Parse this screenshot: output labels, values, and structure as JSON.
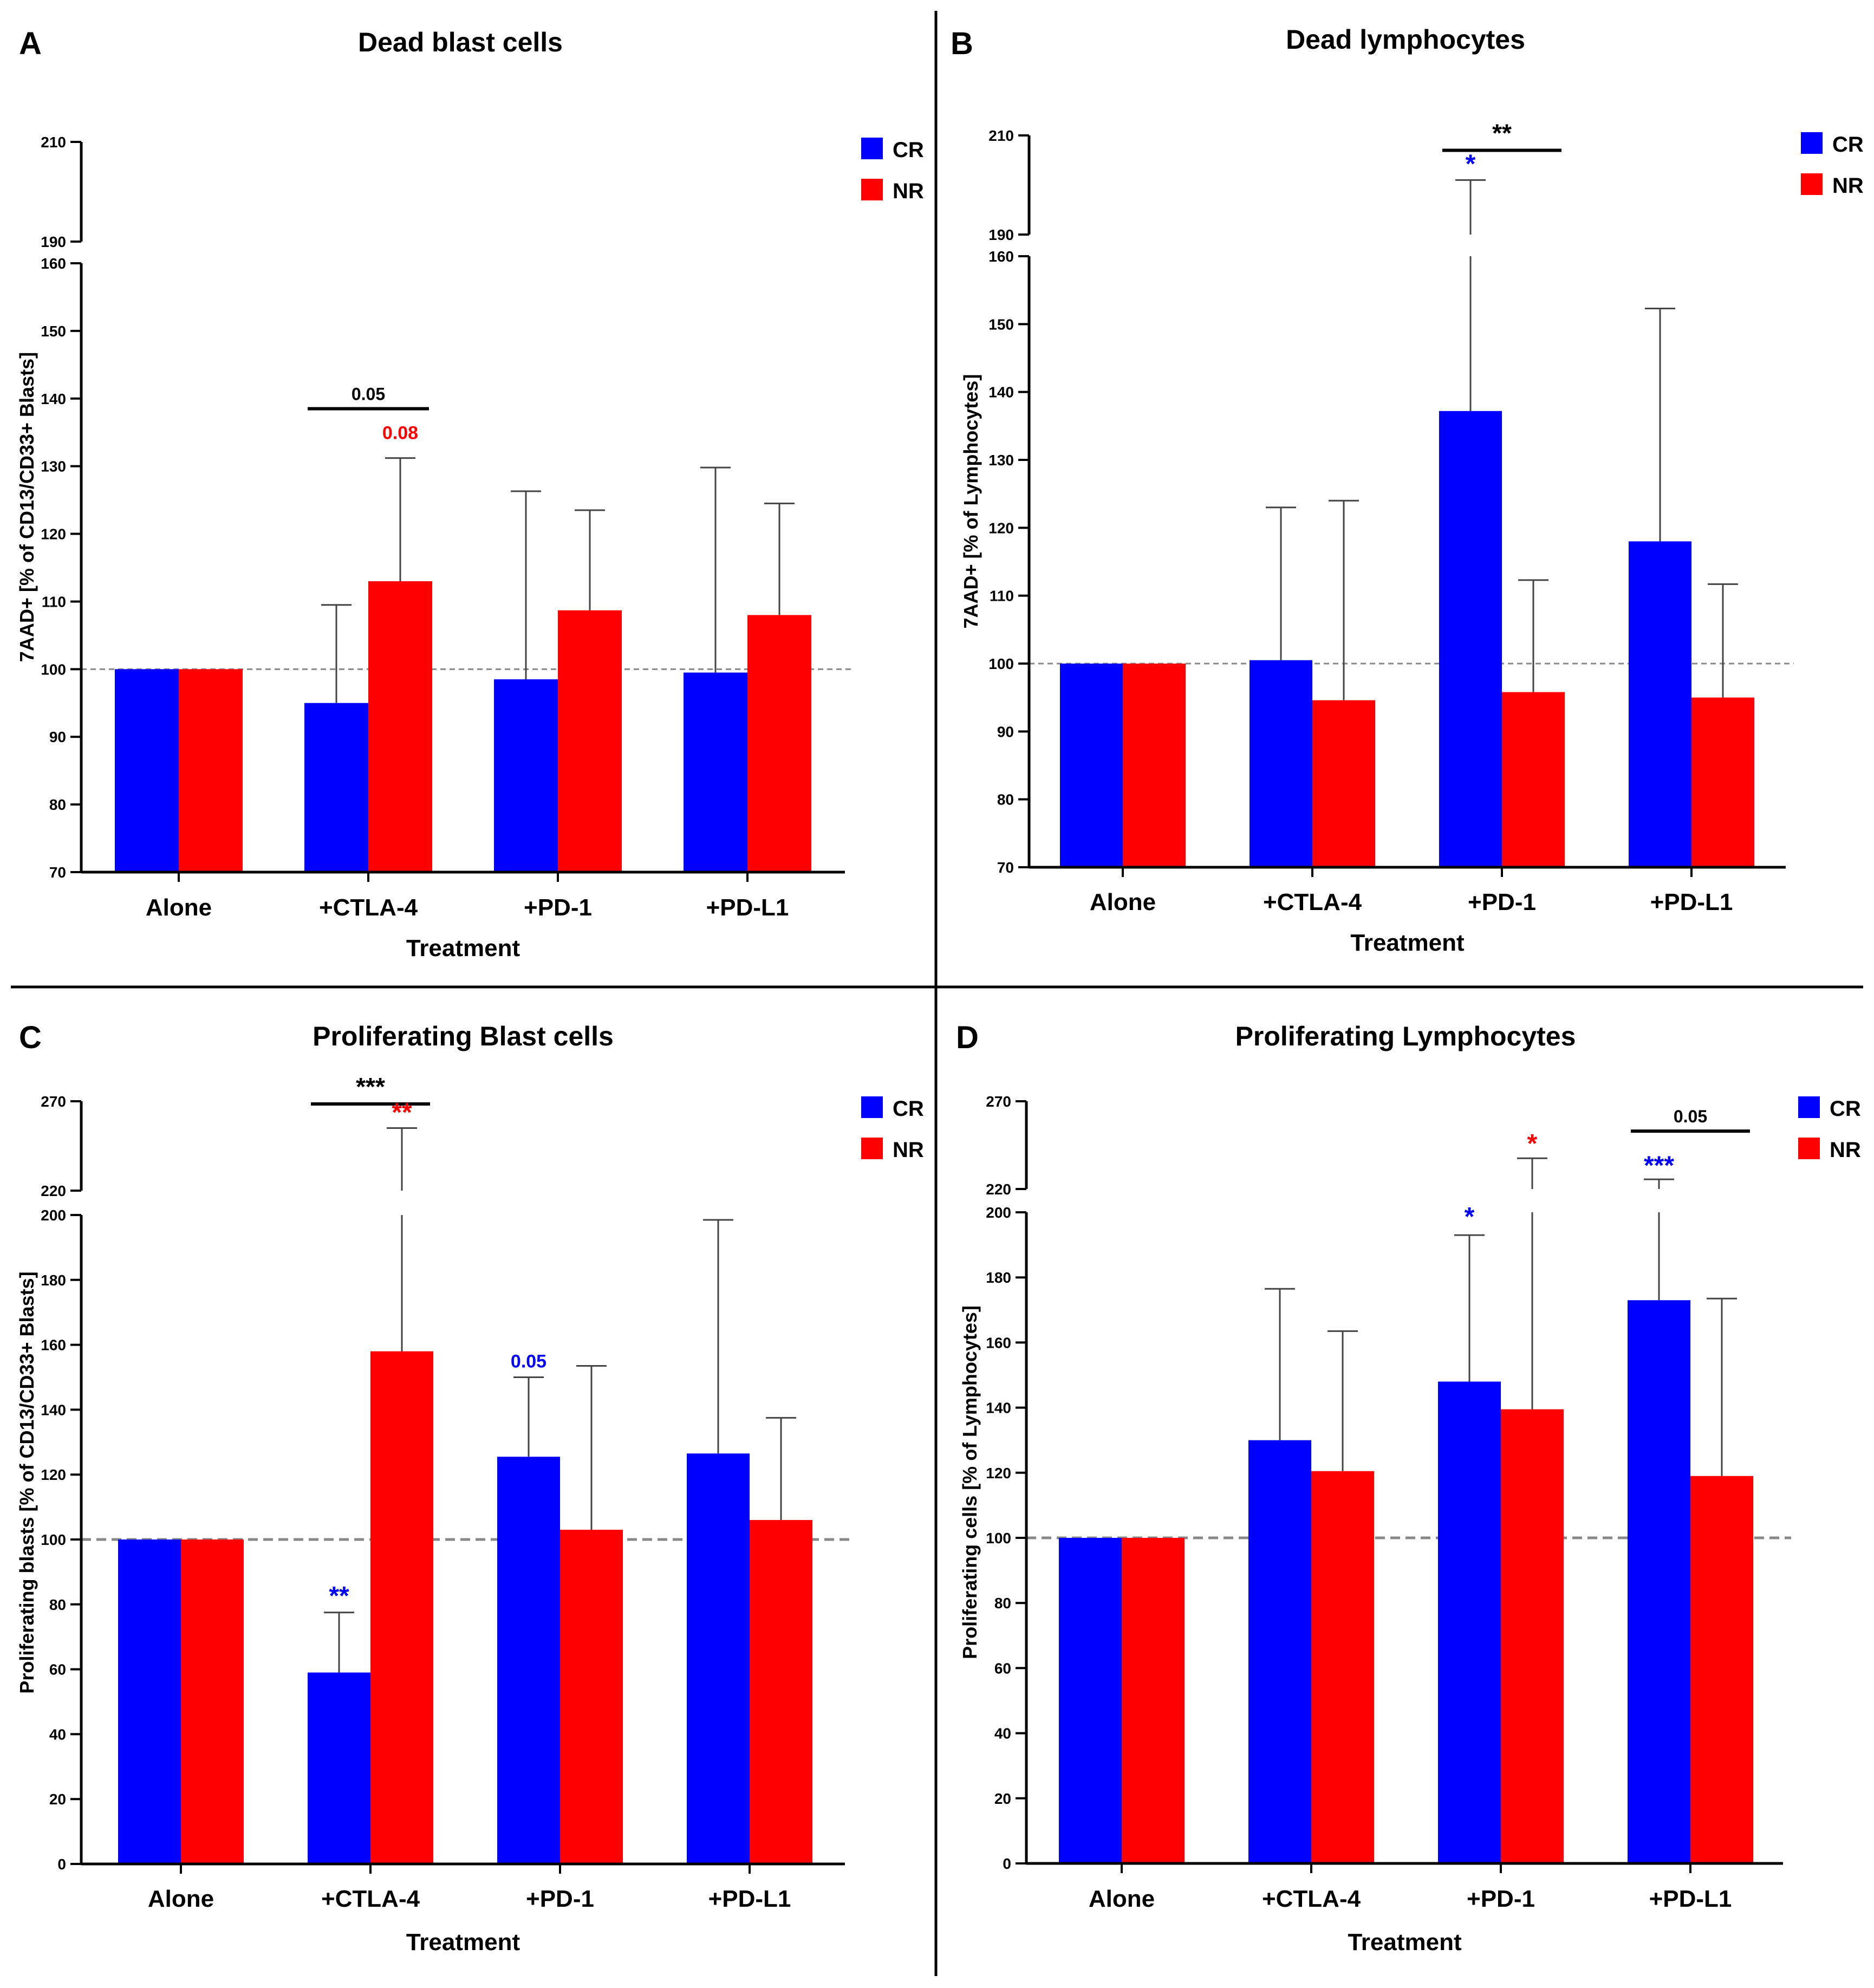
{
  "figure": {
    "colors": {
      "CR": "#0000ff",
      "NR": "#ff0000",
      "axis": "#000000",
      "error": "#444444",
      "baseline": "#888888"
    }
  },
  "chart_data": [
    {
      "panel": "A",
      "type": "bar",
      "title": "Dead blast cells",
      "xlabel": "Treatment",
      "ylabel": "7AAD+ [% of CD13/CD33+ Blasts]",
      "categories": [
        "Alone",
        "+CTLA-4",
        "+PD-1",
        "+PD-L1"
      ],
      "series": [
        {
          "name": "CR",
          "values": [
            100,
            95,
            98.5,
            99.5
          ],
          "errors": [
            0,
            109.5,
            126.3,
            129.8
          ]
        },
        {
          "name": "NR",
          "values": [
            100,
            113,
            108.7,
            108
          ],
          "errors": [
            0,
            131.2,
            123.5,
            124.5
          ]
        }
      ],
      "y_axis": {
        "lower_range": [
          70,
          160
        ],
        "upper_range": [
          190,
          210
        ],
        "lower_ticks": [
          70,
          80,
          90,
          100,
          110,
          120,
          130,
          140,
          150,
          160
        ],
        "upper_ticks": [
          190,
          210
        ]
      },
      "reference_line": 100,
      "legend": {
        "position": "top-right",
        "entries": [
          "CR",
          "NR"
        ]
      },
      "annotations": [
        {
          "text": "0.05",
          "type": "bracket",
          "category": 1,
          "y": 138.5,
          "color": "black"
        },
        {
          "text": "0.08",
          "type": "label",
          "category": 1,
          "series": "NR",
          "y": 134,
          "color": "red"
        }
      ]
    },
    {
      "panel": "B",
      "type": "bar",
      "title": "Dead lymphocytes",
      "xlabel": "Treatment",
      "ylabel": "7AAD+ [% of Lymphocytes]",
      "categories": [
        "Alone",
        "+CTLA-4",
        "+PD-1",
        "+PD-L1"
      ],
      "series": [
        {
          "name": "CR",
          "values": [
            100,
            100.5,
            137.2,
            118
          ],
          "errors": [
            0,
            123,
            201,
            152.3
          ]
        },
        {
          "name": "NR",
          "values": [
            100,
            94.6,
            95.8,
            95
          ],
          "errors": [
            0,
            124,
            112.3,
            111.7
          ]
        }
      ],
      "y_axis": {
        "lower_range": [
          70,
          160
        ],
        "upper_range": [
          190,
          210
        ],
        "lower_ticks": [
          70,
          80,
          90,
          100,
          110,
          120,
          130,
          140,
          150,
          160
        ],
        "upper_ticks": [
          190,
          210
        ]
      },
      "reference_line": 100,
      "legend": {
        "position": "top-right",
        "entries": [
          "CR",
          "NR"
        ]
      },
      "annotations": [
        {
          "text": "**",
          "type": "bracket",
          "category": 2,
          "y": 207,
          "color": "black"
        },
        {
          "text": "*",
          "type": "label",
          "category": 2,
          "series": "CR",
          "y": 202.5,
          "color": "blue"
        }
      ]
    },
    {
      "panel": "C",
      "type": "bar",
      "title": "Proliferating Blast cells",
      "xlabel": "Treatment",
      "ylabel": "Proliferating blasts [% of CD13/CD33+ Blasts]",
      "categories": [
        "Alone",
        "+CTLA-4",
        "+PD-1",
        "+PD-L1"
      ],
      "series": [
        {
          "name": "CR",
          "values": [
            100,
            59,
            125.5,
            126.5
          ],
          "errors": [
            0,
            77.5,
            150,
            198.5
          ]
        },
        {
          "name": "NR",
          "values": [
            100,
            158,
            103,
            106
          ],
          "errors": [
            0,
            255,
            153.5,
            137.5
          ]
        }
      ],
      "y_axis": {
        "lower_range": [
          0,
          200
        ],
        "upper_range": [
          220,
          270
        ],
        "lower_ticks": [
          0,
          20,
          40,
          60,
          80,
          100,
          120,
          140,
          160,
          180,
          200
        ],
        "upper_ticks": [
          220,
          270
        ]
      },
      "reference_line": 100,
      "legend": {
        "position": "top-right",
        "entries": [
          "CR",
          "NR"
        ]
      },
      "annotations": [
        {
          "text": "***",
          "type": "bracket",
          "category": 1,
          "y": 268.5,
          "color": "black"
        },
        {
          "text": "**",
          "type": "label",
          "category": 1,
          "series": "NR",
          "y": 259,
          "color": "red"
        },
        {
          "text": "**",
          "type": "label",
          "category": 1,
          "series": "CR",
          "y": 80,
          "color": "blue"
        },
        {
          "text": "0.05",
          "type": "label",
          "category": 2,
          "series": "CR",
          "y": 153,
          "color": "blue"
        }
      ]
    },
    {
      "panel": "D",
      "type": "bar",
      "title": "Proliferating Lymphocytes",
      "xlabel": "Treatment",
      "ylabel": "Proliferating cells [% of Lymphocytes]",
      "categories": [
        "Alone",
        "+CTLA-4",
        "+PD-1",
        "+PD-L1"
      ],
      "series": [
        {
          "name": "CR",
          "values": [
            100,
            130,
            148,
            173
          ],
          "errors": [
            0,
            176.5,
            193,
            225.5
          ]
        },
        {
          "name": "NR",
          "values": [
            100,
            120.5,
            139.5,
            119
          ],
          "errors": [
            0,
            163.5,
            237.5,
            173.5
          ]
        }
      ],
      "y_axis": {
        "lower_range": [
          0,
          200
        ],
        "upper_range": [
          220,
          270
        ],
        "lower_ticks": [
          0,
          20,
          40,
          60,
          80,
          100,
          120,
          140,
          160,
          180,
          200
        ],
        "upper_ticks": [
          220,
          270
        ]
      },
      "reference_line": 100,
      "legend": {
        "position": "top-right",
        "entries": [
          "CR",
          "NR"
        ]
      },
      "annotations": [
        {
          "text": "0.05",
          "type": "bracket",
          "category": 3,
          "y": 253,
          "color": "black"
        },
        {
          "text": "*",
          "type": "label",
          "category": 2,
          "series": "CR",
          "y": 196,
          "color": "blue"
        },
        {
          "text": "*",
          "type": "label",
          "category": 2,
          "series": "NR",
          "y": 241,
          "color": "red"
        },
        {
          "text": "***",
          "type": "label",
          "category": 3,
          "series": "CR",
          "y": 228.5,
          "color": "blue"
        }
      ]
    }
  ]
}
